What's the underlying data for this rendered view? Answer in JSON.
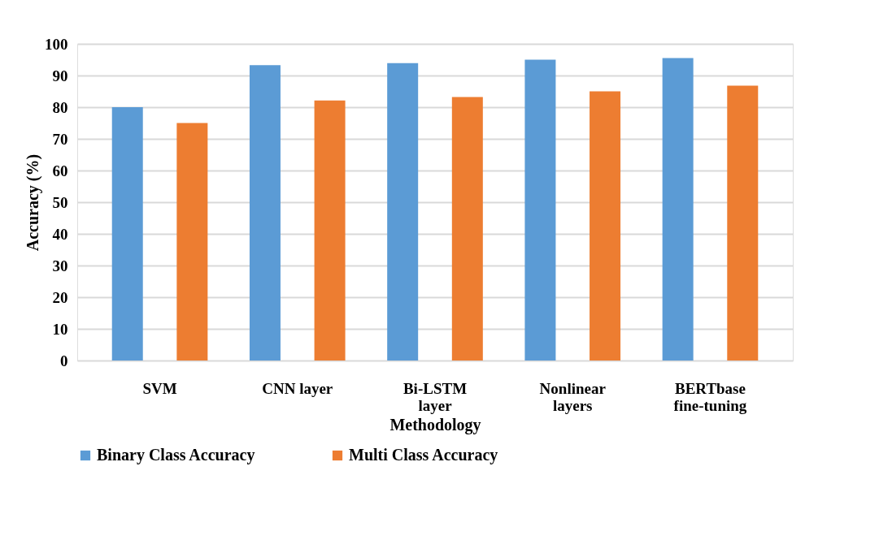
{
  "chart_data": {
    "type": "bar",
    "xlabel": "Methodology",
    "ylabel": "Accuracy (%)",
    "categories": [
      "SVM",
      "CNN layer",
      "Bi-LSTM\nlayer",
      "Nonlinear\nlayers",
      "BERTbase\nfine-tuning"
    ],
    "series": [
      {
        "name": "Binary Class Accuracy",
        "color": "#5b9bd5",
        "values": [
          80,
          93.3,
          93.9,
          95.0,
          95.5
        ]
      },
      {
        "name": "Multi Class Accuracy",
        "color": "#ed7d31",
        "values": [
          75,
          82.1,
          83.2,
          85.0,
          86.8
        ]
      }
    ],
    "ylim": [
      0,
      100
    ],
    "yticks": [
      0,
      10,
      20,
      30,
      40,
      50,
      60,
      70,
      80,
      90,
      100
    ],
    "grid": "y",
    "legend": "bottom"
  }
}
